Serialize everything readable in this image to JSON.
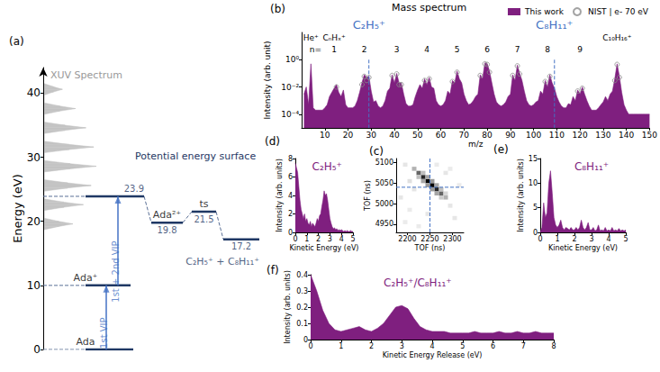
{
  "chart_data": [
    {
      "type": "energy_diagram",
      "panel": "(a)",
      "ylabel": "Energy (eV)",
      "ylim": [
        0,
        44
      ],
      "yticks": [
        0,
        10,
        20,
        30,
        40
      ],
      "grid": false,
      "tick_labels": "y",
      "color": "#1f3864",
      "title": "Potential energy surface",
      "spectrum": {
        "name": "XUV Spectrum",
        "color": "#c4c4c4",
        "xlim": [
          0,
          1
        ],
        "energy": [
          18.7,
          19.2,
          19.6,
          20.0,
          20.5,
          21.7,
          22.2,
          22.6,
          23.0,
          23.5,
          24.7,
          25.2,
          25.6,
          26.0,
          26.5,
          27.7,
          28.2,
          28.6,
          29.0,
          29.5,
          30.7,
          31.2,
          31.6,
          32.0,
          32.5,
          33.7,
          34.2,
          34.6,
          35.0,
          35.5,
          36.7,
          37.2,
          37.6,
          38.0,
          38.5,
          39.7,
          40.2,
          40.6,
          41.0,
          41.5
        ],
        "intensity": [
          0,
          0.28,
          0.55,
          0.28,
          0,
          0,
          0.38,
          0.75,
          0.38,
          0,
          0,
          0.45,
          0.9,
          0.45,
          0,
          0,
          0.5,
          1,
          0.5,
          0,
          0,
          0.48,
          0.95,
          0.48,
          0,
          0,
          0.4,
          0.8,
          0.4,
          0,
          0,
          0.3,
          0.6,
          0.3,
          0,
          0,
          0.18,
          0.35,
          0.18,
          0
        ]
      },
      "levels": [
        {
          "label": "Ada",
          "energy": 0
        },
        {
          "label": "Ada⁺",
          "energy": 10
        },
        {
          "energy": 23.9,
          "data_labels": true
        },
        {
          "label": "Ada²⁺",
          "energy": 19.8,
          "data_labels": true
        },
        {
          "label": "ts",
          "energy": 21.5,
          "data_labels": true
        },
        {
          "label": "C₂H₅⁺ + C₈H₁₁⁺",
          "energy": 17.2,
          "data_labels": true
        }
      ],
      "transitions": [
        {
          "label": "1st VIP",
          "from": 0,
          "to": 10,
          "color": "#4472c4"
        },
        {
          "label": "1st + 2nd VIP",
          "from": 10,
          "to": 23.9,
          "color": "#4472c4"
        }
      ]
    },
    {
      "type": "area",
      "panel": "(b)",
      "title": "Mass spectrum",
      "xlabel": "m/z",
      "ylabel": "Intensity (arb. unit)",
      "log": "y",
      "grid": false,
      "legend": "top right",
      "xlim": [
        0,
        150
      ],
      "xticks": [
        10,
        20,
        30,
        40,
        50,
        60,
        70,
        80,
        90,
        100,
        110,
        120,
        130,
        140,
        150
      ],
      "ylim": [
        1e-05,
        100
      ],
      "yticks": [
        {
          "value": 1,
          "label": "10⁰"
        },
        {
          "value": 0.01,
          "label": "10⁻²"
        },
        {
          "value": 0.0001,
          "label": "10⁻⁴"
        }
      ],
      "series": [
        {
          "name": "This work",
          "type": "area",
          "color": "#7f1f7f",
          "x": [
            1,
            2,
            3,
            4,
            5,
            6,
            7,
            8,
            9,
            10,
            11,
            12,
            13,
            14,
            15,
            16,
            17,
            18,
            19,
            20,
            21,
            22,
            23,
            24,
            25,
            26,
            27,
            28,
            29,
            30,
            31,
            32,
            33,
            34,
            35,
            36,
            37,
            38,
            39,
            40,
            41,
            42,
            43,
            44,
            45,
            46,
            47,
            48,
            49,
            50,
            51,
            52,
            53,
            54,
            55,
            56,
            57,
            58,
            59,
            60,
            61,
            62,
            63,
            64,
            65,
            66,
            67,
            68,
            69,
            70,
            71,
            72,
            73,
            74,
            75,
            76,
            77,
            78,
            79,
            80,
            81,
            82,
            83,
            84,
            85,
            86,
            87,
            88,
            89,
            90,
            91,
            92,
            93,
            94,
            95,
            96,
            97,
            98,
            99,
            100,
            101,
            102,
            103,
            104,
            105,
            106,
            107,
            108,
            109,
            110,
            111,
            112,
            113,
            114,
            115,
            116,
            117,
            118,
            119,
            120,
            121,
            122,
            123,
            124,
            125,
            126,
            127,
            128,
            129,
            130,
            131,
            132,
            133,
            134,
            135,
            136,
            137,
            138,
            139,
            140,
            141,
            142,
            143,
            144,
            145,
            146,
            147,
            148,
            149,
            150
          ],
          "values": [
            0.003,
            0.01,
            0.0005,
            0.5,
            0.0003,
            0.0002,
            0.0002,
            0.0002,
            0.0002,
            0.0003,
            0.0005,
            0.002,
            0.004,
            0.008,
            0.015,
            0.004,
            0.002,
            0.006,
            0.0005,
            0.0003,
            0.0003,
            0.0003,
            0.0004,
            0.001,
            0.004,
            0.02,
            0.08,
            0.05,
            0.06,
            0.005,
            0.0008,
            0.001,
            0.0004,
            0.0003,
            0.0004,
            0.001,
            0.005,
            0.008,
            0.08,
            0.02,
            0.1,
            0.02,
            0.02,
            0.003,
            0.0006,
            0.0004,
            0.0004,
            0.0005,
            0.002,
            0.006,
            0.015,
            0.008,
            0.04,
            0.015,
            0.05,
            0.01,
            0.008,
            0.001,
            0.0005,
            0.0004,
            0.0005,
            0.001,
            0.005,
            0.003,
            0.03,
            0.02,
            0.15,
            0.04,
            0.02,
            0.003,
            0.001,
            0.0005,
            0.0006,
            0.001,
            0.002,
            0.003,
            0.08,
            0.04,
            0.6,
            0.5,
            0.15,
            0.02,
            0.003,
            0.0008,
            0.0005,
            0.0004,
            0.0005,
            0.0008,
            0.002,
            0.003,
            0.08,
            0.03,
            0.4,
            0.1,
            0.03,
            0.005,
            0.001,
            0.0005,
            0.0004,
            0.0005,
            0.0008,
            0.001,
            0.005,
            0.003,
            0.03,
            0.01,
            0.08,
            0.02,
            0.008,
            0.002,
            0.0008,
            0.0004,
            0.0003,
            0.0003,
            0.0006,
            0.0005,
            0.002,
            0.001,
            0.006,
            0.003,
            0.01,
            0.003,
            0.001,
            0.0004,
            0.0002,
            0.0002,
            0.0002,
            0.0003,
            0.0005,
            0.0008,
            0.002,
            0.001,
            0.003,
            0.005,
            0.04,
            0.5,
            0.06,
            0.004,
            0.0005,
            0.0002,
            0.0001,
            0.0001,
            0.0001,
            0.0001,
            0.0001,
            0.0001,
            0.0001,
            0.0001,
            0.0001,
            0.0001
          ]
        },
        {
          "name": "NIST | e- 70 eV",
          "type": "scatter",
          "marker": "circle",
          "color": "#8c8c8c",
          "x": [
            15,
            26,
            27,
            28,
            29,
            39,
            41,
            42,
            43,
            53,
            55,
            65,
            67,
            77,
            79,
            80,
            81,
            91,
            93,
            94,
            105,
            107,
            119,
            121,
            135,
            136,
            137
          ],
          "values": [
            0.01,
            0.015,
            0.06,
            0.03,
            0.05,
            0.07,
            0.09,
            0.015,
            0.015,
            0.03,
            0.04,
            0.025,
            0.12,
            0.07,
            0.5,
            0.45,
            0.12,
            0.07,
            0.35,
            0.09,
            0.025,
            0.06,
            0.005,
            0.008,
            0.03,
            0.45,
            0.05
          ]
        }
      ],
      "annotations": [
        {
          "text": "He⁺",
          "x": 4
        },
        {
          "text": "CₙHₓ⁺",
          "x": 14
        },
        {
          "text": "C₁₀H₁₆⁺",
          "x": 136
        }
      ],
      "groups": {
        "label": "n=",
        "label_x": 6,
        "n": [
          1,
          2,
          3,
          4,
          5,
          6,
          7,
          8,
          9
        ],
        "x": [
          14,
          27,
          41,
          54,
          67,
          80,
          93,
          106,
          120
        ]
      },
      "highlights": [
        {
          "text": "C₂H₅⁺",
          "x": 29,
          "color": "#4472c4"
        },
        {
          "text": "C₈H₁₁⁺",
          "x": 109,
          "color": "#4472c4"
        }
      ]
    },
    {
      "type": "heatmap",
      "panel": "(c)",
      "xlabel": "TOF (ns)",
      "ylabel": "TOF (ns)",
      "grid": false,
      "xlim": [
        2175,
        2325
      ],
      "xticks": [
        2200,
        2250,
        2300
      ],
      "ylim": [
        4930,
        5110
      ],
      "yticks": [
        4950,
        5000,
        5050,
        5100
      ],
      "cell_size": [
        10,
        10
      ],
      "value_range": [
        0,
        1
      ],
      "cells": [
        [
          2215,
          5085,
          0.3
        ],
        [
          2225,
          5075,
          0.6
        ],
        [
          2235,
          5065,
          0.85
        ],
        [
          2245,
          5055,
          1
        ],
        [
          2255,
          5045,
          1
        ],
        [
          2265,
          5035,
          0.85
        ],
        [
          2275,
          5025,
          0.6
        ],
        [
          2285,
          5015,
          0.3
        ],
        [
          2225,
          5065,
          0.25
        ],
        [
          2235,
          5055,
          0.35
        ],
        [
          2245,
          5045,
          0.4
        ],
        [
          2255,
          5035,
          0.4
        ],
        [
          2265,
          5025,
          0.35
        ],
        [
          2275,
          5015,
          0.2
        ],
        [
          2235,
          5075,
          0.25
        ],
        [
          2245,
          5065,
          0.35
        ],
        [
          2255,
          5055,
          0.4
        ],
        [
          2265,
          5045,
          0.35
        ],
        [
          2275,
          5035,
          0.25
        ],
        [
          2285,
          5025,
          0.15
        ],
        [
          2195,
          5095,
          0.1
        ],
        [
          2205,
          4985,
          0.08
        ],
        [
          2215,
          5035,
          0.1
        ],
        [
          2295,
          5085,
          0.08
        ],
        [
          2305,
          4965,
          0.1
        ],
        [
          2285,
          5075,
          0.1
        ],
        [
          2195,
          4955,
          0.08
        ],
        [
          2245,
          4975,
          0.1
        ],
        [
          2265,
          5095,
          0.08
        ],
        [
          2205,
          5055,
          0.12
        ],
        [
          2295,
          4995,
          0.1
        ],
        [
          2225,
          4945,
          0.08
        ],
        [
          2315,
          5045,
          0.08
        ],
        [
          2185,
          5015,
          0.1
        ]
      ],
      "lines": {
        "x": 2250,
        "y": 5040,
        "color": "#4472c4"
      }
    },
    {
      "type": "area",
      "panel": "(d)",
      "annotation": "C₂H₅⁺",
      "xlabel": "Kinetic Energy (eV)",
      "ylabel": "Intensity (arb. units)",
      "grid": false,
      "color": "#7f1f7f",
      "xlim": [
        0,
        5
      ],
      "xticks": [
        0,
        1,
        2,
        3,
        4,
        5
      ],
      "ylim": [
        0,
        8
      ],
      "yticks": [
        0,
        2,
        4,
        6,
        8
      ],
      "x": [
        0,
        0.1,
        0.2,
        0.3,
        0.4,
        0.5,
        0.6,
        0.7,
        0.8,
        0.9,
        1,
        1.1,
        1.2,
        1.3,
        1.4,
        1.5,
        1.6,
        1.7,
        1.8,
        1.9,
        2,
        2.1,
        2.2,
        2.3,
        2.4,
        2.5,
        2.6,
        2.7,
        2.8,
        2.9,
        3,
        3.1,
        3.2,
        3.3,
        3.4,
        3.5,
        3.6,
        3.7,
        3.8,
        3.9,
        4,
        4.1,
        4.2,
        4.3,
        4.4,
        4.5,
        4.6,
        4.7,
        4.8,
        4.9,
        5
      ],
      "values": [
        7.5,
        7,
        6.5,
        5,
        3.5,
        2.5,
        2,
        1.5,
        2,
        1.2,
        1.5,
        1,
        0.8,
        1.2,
        0.6,
        1,
        0.8,
        0.6,
        1,
        1.5,
        1.2,
        1.8,
        2,
        2.8,
        3.5,
        4.5,
        4,
        4.2,
        3.5,
        2.5,
        1.5,
        1,
        0.6,
        0.4,
        0.5,
        0.3,
        0.4,
        0.2,
        0.3,
        0.2,
        0.3,
        0.2,
        0.1,
        0.2,
        0.1,
        0.2,
        0.1,
        0.1,
        0.2,
        0.1,
        0.1
      ]
    },
    {
      "type": "area",
      "panel": "(e)",
      "annotation": "C₈H₁₁⁺",
      "xlabel": "Kinetic Energy (eV)",
      "ylabel": "Intensity (arb. units)",
      "grid": false,
      "color": "#7f1f7f",
      "xlim": [
        0,
        5
      ],
      "xticks": [
        0,
        1,
        2,
        3,
        4,
        5
      ],
      "ylim": [
        0,
        15
      ],
      "yticks": [
        0,
        5,
        10,
        15
      ],
      "x": [
        0,
        0.1,
        0.2,
        0.3,
        0.4,
        0.5,
        0.6,
        0.7,
        0.8,
        0.9,
        1,
        1.1,
        1.2,
        1.3,
        1.4,
        1.5,
        1.6,
        1.7,
        1.8,
        1.9,
        2,
        2.1,
        2.2,
        2.3,
        2.4,
        2.5,
        2.6,
        2.7,
        2.8,
        2.9,
        3,
        3.1,
        3.2,
        3.3,
        3.4,
        3.5,
        3.6,
        3.7,
        3.8,
        3.9,
        4,
        4.1,
        4.2,
        4.3,
        4.4,
        4.5,
        4.6,
        4.7,
        4.8,
        4.9,
        5
      ],
      "values": [
        0,
        1,
        6,
        3,
        4,
        10,
        12.5,
        8,
        3,
        1.5,
        1,
        1.5,
        2.5,
        1,
        0.5,
        1,
        0.8,
        0.5,
        1,
        0.5,
        0.5,
        1,
        0.5,
        1,
        2.5,
        1,
        0.5,
        1,
        2,
        0.5,
        0.5,
        1,
        0.3,
        0.5,
        1.5,
        0.3,
        0.5,
        0.3,
        1,
        0.3,
        0.5,
        0.3,
        1,
        0.3,
        0.5,
        0.3,
        0.8,
        0.3,
        0.5,
        0.3,
        0.5
      ]
    },
    {
      "type": "area",
      "panel": "(f)",
      "annotation": "C₂H₅⁺/C₈H₁₁⁺",
      "xlabel": "Kinetic Energy Release (eV)",
      "ylabel": "Intensity (arb. units)",
      "grid": false,
      "color": "#7f1f7f",
      "xlim": [
        0,
        8
      ],
      "xticks": [
        0,
        1,
        2,
        3,
        4,
        5,
        6,
        7,
        8
      ],
      "ylim": [
        0,
        0.4
      ],
      "yticks": [
        0,
        0.1,
        0.2,
        0.3,
        0.4
      ],
      "x": [
        0,
        0.2,
        0.4,
        0.6,
        0.8,
        1,
        1.2,
        1.4,
        1.6,
        1.8,
        2,
        2.2,
        2.4,
        2.6,
        2.8,
        3,
        3.2,
        3.4,
        3.6,
        3.8,
        4,
        4.2,
        4.4,
        4.6,
        4.8,
        5,
        5.2,
        5.4,
        5.6,
        5.8,
        6,
        6.2,
        6.4,
        6.6,
        6.8,
        7,
        7.2,
        7.4,
        7.6,
        7.8,
        8
      ],
      "values": [
        0.4,
        0.3,
        0.18,
        0.1,
        0.06,
        0.05,
        0.06,
        0.07,
        0.08,
        0.06,
        0.05,
        0.07,
        0.1,
        0.15,
        0.2,
        0.21,
        0.19,
        0.13,
        0.08,
        0.06,
        0.05,
        0.05,
        0.05,
        0.04,
        0.04,
        0.04,
        0.04,
        0.05,
        0.04,
        0.04,
        0.04,
        0.05,
        0.04,
        0.04,
        0.05,
        0.04,
        0.04,
        0.05,
        0.04,
        0.04,
        0.04
      ]
    }
  ]
}
